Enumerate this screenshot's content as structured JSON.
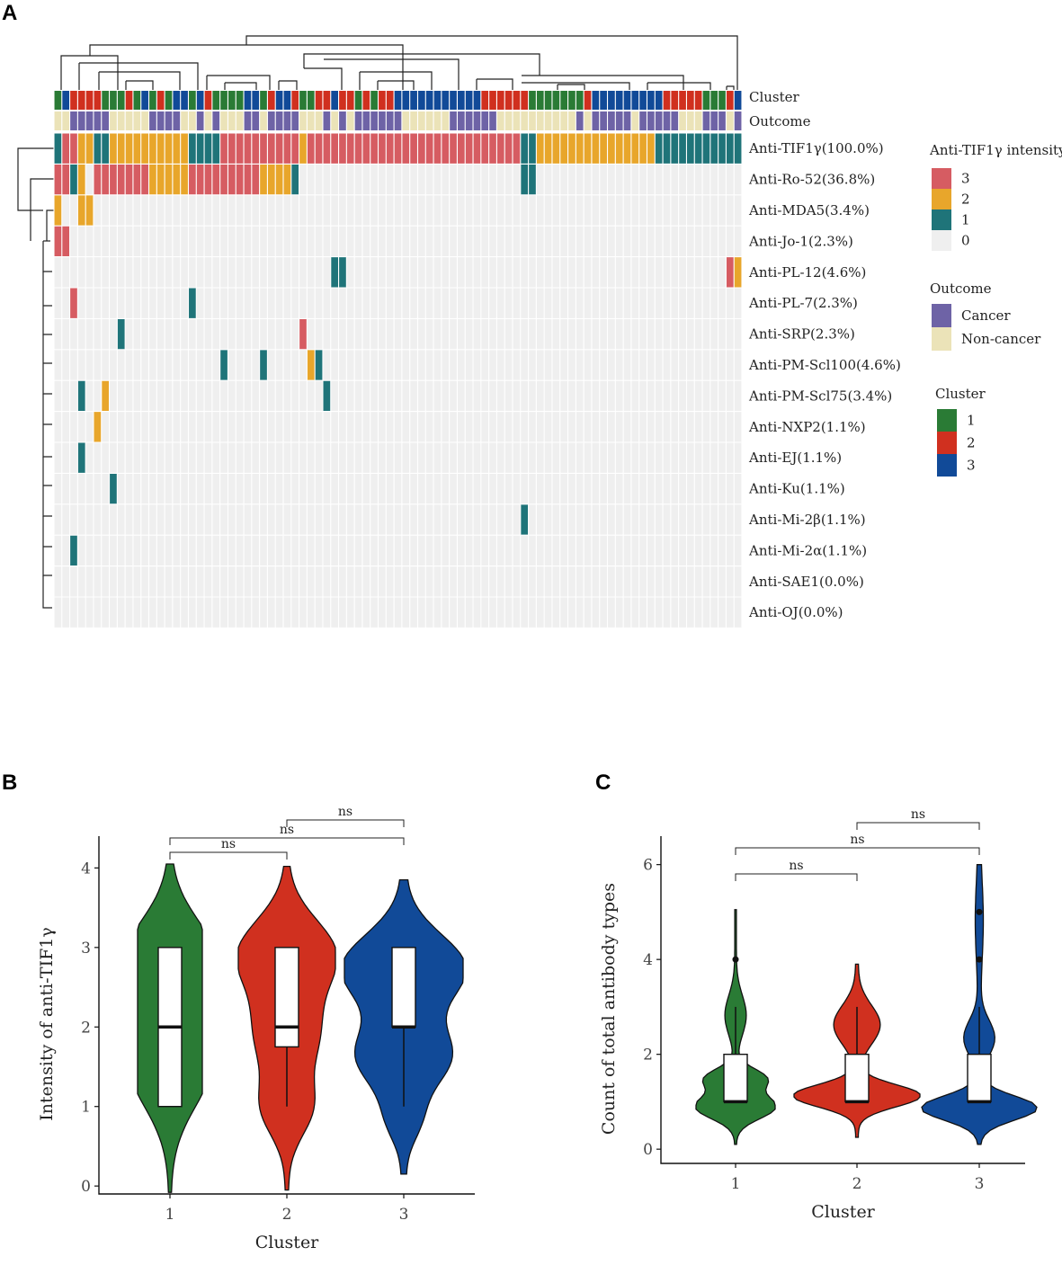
{
  "panels": {
    "a": "A",
    "b": "B",
    "c": "C"
  },
  "colors": {
    "intensity": {
      "3": "#d65c62",
      "2": "#e8a62b",
      "1": "#1f7479",
      "0": "#efefef"
    },
    "outcome": {
      "Cancer": "#6e63a6",
      "Non-cancer": "#ebe3b8"
    },
    "cluster": {
      "1": "#2a7b35",
      "2": "#d0301f",
      "3": "#114a98"
    },
    "grid": "#ffffff"
  },
  "heatmap": {
    "n_samples": 87,
    "cluster_label": "Cluster",
    "outcome_label": "Outcome",
    "cluster_row": [
      1,
      3,
      2,
      2,
      2,
      2,
      1,
      1,
      1,
      2,
      1,
      3,
      1,
      2,
      1,
      3,
      3,
      1,
      3,
      2,
      1,
      1,
      1,
      1,
      3,
      3,
      1,
      2,
      3,
      3,
      2,
      1,
      1,
      2,
      2,
      3,
      2,
      2,
      1,
      2,
      1,
      2,
      2,
      3,
      3,
      3,
      3,
      3,
      3,
      3,
      3,
      3,
      3,
      3,
      2,
      2,
      2,
      2,
      2,
      2,
      1,
      1,
      1,
      1,
      1,
      1,
      1,
      2,
      3,
      3,
      3,
      3,
      3,
      3,
      3,
      3,
      3,
      2,
      2,
      2,
      2,
      2,
      1,
      1,
      1,
      2,
      3
    ],
    "outcome_row": [
      0,
      0,
      1,
      1,
      1,
      1,
      1,
      0,
      0,
      0,
      0,
      0,
      1,
      1,
      1,
      1,
      0,
      0,
      1,
      0,
      1,
      0,
      0,
      0,
      1,
      1,
      0,
      1,
      1,
      1,
      1,
      0,
      0,
      0,
      1,
      0,
      1,
      0,
      1,
      1,
      1,
      1,
      1,
      1,
      0,
      0,
      0,
      0,
      0,
      0,
      1,
      1,
      1,
      1,
      1,
      1,
      0,
      0,
      0,
      0,
      0,
      0,
      0,
      0,
      0,
      0,
      1,
      0,
      1,
      1,
      1,
      1,
      1,
      0,
      1,
      1,
      1,
      1,
      1,
      0,
      0,
      0,
      1,
      1,
      1,
      0,
      1
    ],
    "rows": [
      {
        "label": "Anti-TIF1γ(100.0%)",
        "cells": [
          [
            0,
            1,
            1
          ],
          [
            1,
            3,
            3
          ],
          [
            3,
            5,
            2
          ],
          [
            5,
            7,
            1
          ],
          [
            7,
            17,
            2
          ],
          [
            17,
            21,
            1
          ],
          [
            21,
            31,
            3
          ],
          [
            31,
            32,
            2
          ],
          [
            32,
            59,
            3
          ],
          [
            59,
            61,
            1
          ],
          [
            61,
            76,
            2
          ],
          [
            76,
            87,
            1
          ]
        ]
      },
      {
        "label": "Anti-Ro-52(36.8%)",
        "cells": [
          [
            0,
            2,
            3
          ],
          [
            2,
            3,
            1
          ],
          [
            3,
            4,
            2
          ],
          [
            5,
            12,
            3
          ],
          [
            12,
            17,
            2
          ],
          [
            17,
            26,
            3
          ],
          [
            26,
            30,
            2
          ],
          [
            30,
            31,
            1
          ],
          [
            59,
            61,
            1
          ]
        ]
      },
      {
        "label": "Anti-MDA5(3.4%)",
        "cells": [
          [
            0,
            1,
            2
          ],
          [
            3,
            5,
            2
          ]
        ]
      },
      {
        "label": "Anti-Jo-1(2.3%)",
        "cells": [
          [
            0,
            2,
            3
          ]
        ]
      },
      {
        "label": "Anti-PL-12(4.6%)",
        "cells": [
          [
            35,
            37,
            1
          ],
          [
            85,
            86,
            3
          ],
          [
            86,
            87,
            2
          ]
        ]
      },
      {
        "label": "Anti-PL-7(2.3%)",
        "cells": [
          [
            2,
            3,
            3
          ],
          [
            17,
            18,
            1
          ]
        ]
      },
      {
        "label": "Anti-SRP(2.3%)",
        "cells": [
          [
            8,
            9,
            1
          ],
          [
            31,
            32,
            3
          ]
        ]
      },
      {
        "label": "Anti-PM-Scl100(4.6%)",
        "cells": [
          [
            21,
            22,
            1
          ],
          [
            26,
            27,
            1
          ],
          [
            32,
            33,
            2
          ],
          [
            33,
            34,
            1
          ]
        ]
      },
      {
        "label": "Anti-PM-Scl75(3.4%)",
        "cells": [
          [
            3,
            4,
            1
          ],
          [
            6,
            7,
            2
          ],
          [
            34,
            35,
            1
          ]
        ]
      },
      {
        "label": "Anti-NXP2(1.1%)",
        "cells": [
          [
            5,
            6,
            2
          ]
        ]
      },
      {
        "label": "Anti-EJ(1.1%)",
        "cells": [
          [
            3,
            4,
            1
          ]
        ]
      },
      {
        "label": "Anti-Ku(1.1%)",
        "cells": [
          [
            7,
            8,
            1
          ]
        ]
      },
      {
        "label": "Anti-Mi-2β(1.1%)",
        "cells": [
          [
            59,
            60,
            1
          ]
        ]
      },
      {
        "label": "Anti-Mi-2α(1.1%)",
        "cells": [
          [
            2,
            3,
            1
          ]
        ]
      },
      {
        "label": "Anti-SAE1(0.0%)",
        "cells": []
      },
      {
        "label": "Anti-OJ(0.0%)",
        "cells": []
      }
    ]
  },
  "legend": {
    "intensity": {
      "title": "Anti-TIF1γ intensity",
      "items": [
        {
          "key": "3",
          "label": "3"
        },
        {
          "key": "2",
          "label": "2"
        },
        {
          "key": "1",
          "label": "1"
        },
        {
          "key": "0",
          "label": "0"
        }
      ]
    },
    "outcome": {
      "title": "Outcome",
      "items": [
        {
          "key": "Cancer",
          "label": "Cancer"
        },
        {
          "key": "Non-cancer",
          "label": "Non-cancer"
        }
      ]
    },
    "cluster": {
      "title": "Cluster",
      "items": [
        {
          "key": "1",
          "label": "1"
        },
        {
          "key": "2",
          "label": "2"
        },
        {
          "key": "3",
          "label": "3"
        }
      ]
    }
  },
  "chart_data": [
    {
      "type": "violin",
      "panel": "B",
      "title": "",
      "xlabel": "Cluster",
      "ylabel": "Intensity of anti-TIF1γ",
      "categories": [
        "1",
        "2",
        "3"
      ],
      "ylim": [
        -0.1,
        4.4
      ],
      "yticks": [
        0,
        1,
        2,
        3,
        4
      ],
      "boxes": [
        {
          "group": "1",
          "min": 1,
          "q1": 1,
          "median": 2,
          "q3": 3,
          "max": 3
        },
        {
          "group": "2",
          "min": 1,
          "q1": 1.75,
          "median": 2,
          "q3": 3,
          "max": 3
        },
        {
          "group": "3",
          "min": 1,
          "q1": 2,
          "median": 2,
          "q3": 3,
          "max": 3
        }
      ],
      "density_range": [
        [
          -0.08,
          4.05
        ],
        [
          -0.05,
          4.02
        ],
        [
          0.15,
          3.85
        ]
      ],
      "annotations": [
        {
          "from": "1",
          "to": "2",
          "text": "ns"
        },
        {
          "from": "1",
          "to": "3",
          "text": "ns"
        },
        {
          "from": "2",
          "to": "3",
          "text": "ns"
        }
      ]
    },
    {
      "type": "violin",
      "panel": "C",
      "title": "",
      "xlabel": "Cluster",
      "ylabel": "Count of total antibody types",
      "categories": [
        "1",
        "2",
        "3"
      ],
      "ylim": [
        -0.3,
        6.6
      ],
      "yticks": [
        0,
        2,
        4,
        6
      ],
      "boxes": [
        {
          "group": "1",
          "min": 1,
          "q1": 1,
          "median": 1,
          "q3": 2,
          "max": 3,
          "outliers": [
            4
          ]
        },
        {
          "group": "2",
          "min": 1,
          "q1": 1,
          "median": 1,
          "q3": 2,
          "max": 3,
          "outliers": []
        },
        {
          "group": "3",
          "min": 1,
          "q1": 1,
          "median": 1,
          "q3": 2,
          "max": 3,
          "outliers": [
            4,
            5
          ]
        }
      ],
      "density_range": [
        [
          0.1,
          5.05
        ],
        [
          0.25,
          3.9
        ],
        [
          0.1,
          6.0
        ]
      ],
      "annotations": [
        {
          "from": "1",
          "to": "2",
          "text": "ns"
        },
        {
          "from": "1",
          "to": "3",
          "text": "ns"
        },
        {
          "from": "2",
          "to": "3",
          "text": "ns"
        }
      ]
    }
  ]
}
